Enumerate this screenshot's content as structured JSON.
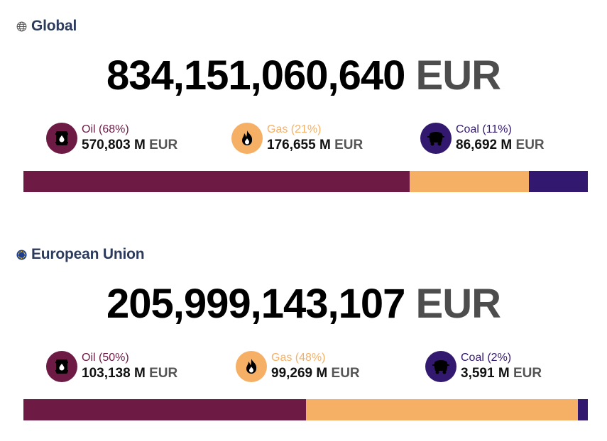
{
  "colors": {
    "oil": "#6d1a45",
    "gas": "#f5b066",
    "coal": "#32186e",
    "title": "#2c3a5c"
  },
  "sections": [
    {
      "icon": "globe-icon",
      "title": "Global",
      "total": "834,151,060,640",
      "currency": "EUR",
      "fuels": [
        {
          "key": "oil",
          "icon": "oil-barrel-icon",
          "label": "Oil (68%)",
          "value": "570,803 M",
          "unit": "EUR",
          "share": 68.43
        },
        {
          "key": "gas",
          "icon": "gas-flame-icon",
          "label": "Gas (21%)",
          "value": "176,655 M",
          "unit": "EUR",
          "share": 21.18
        },
        {
          "key": "coal",
          "icon": "coal-cart-icon",
          "label": "Coal (11%)",
          "value": "86,692 M",
          "unit": "EUR",
          "share": 10.39
        }
      ]
    },
    {
      "icon": "eu-flag-icon",
      "title": "European Union",
      "total": "205,999,143,107",
      "currency": "EUR",
      "fuels": [
        {
          "key": "oil",
          "icon": "oil-barrel-icon",
          "label": "Oil (50%)",
          "value": "103,138 M",
          "unit": "EUR",
          "share": 50.07
        },
        {
          "key": "gas",
          "icon": "gas-flame-icon",
          "label": "Gas (48%)",
          "value": "99,269 M",
          "unit": "EUR",
          "share": 48.19
        },
        {
          "key": "coal",
          "icon": "coal-cart-icon",
          "label": "Coal (2%)",
          "value": "3,591 M",
          "unit": "EUR",
          "share": 1.74
        }
      ]
    }
  ]
}
